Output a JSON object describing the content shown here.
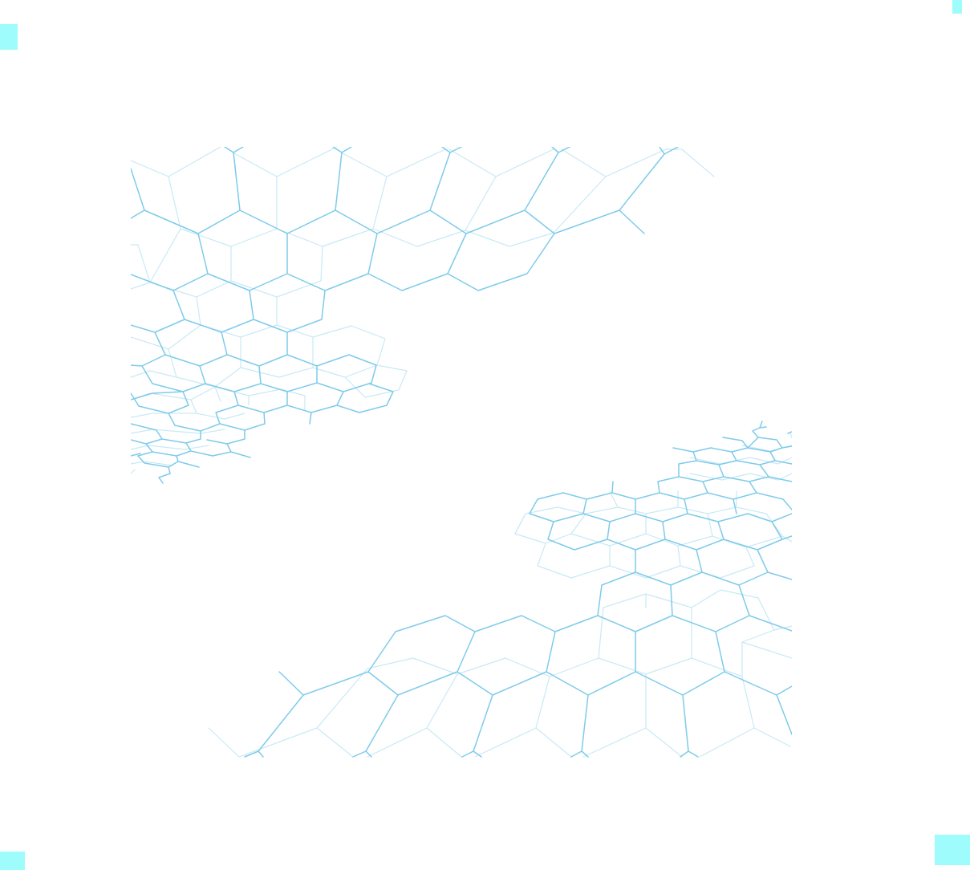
{
  "colors": {
    "background": "#ffffff",
    "line_front": "#7ecbea",
    "line_back": "#c9e9f5",
    "corner_fill": "#9ffcfd"
  },
  "graphic": {
    "motif": "hexagonal-wireframe-mesh",
    "pieces": [
      "upper-left-mesh",
      "lower-right-mesh"
    ]
  }
}
